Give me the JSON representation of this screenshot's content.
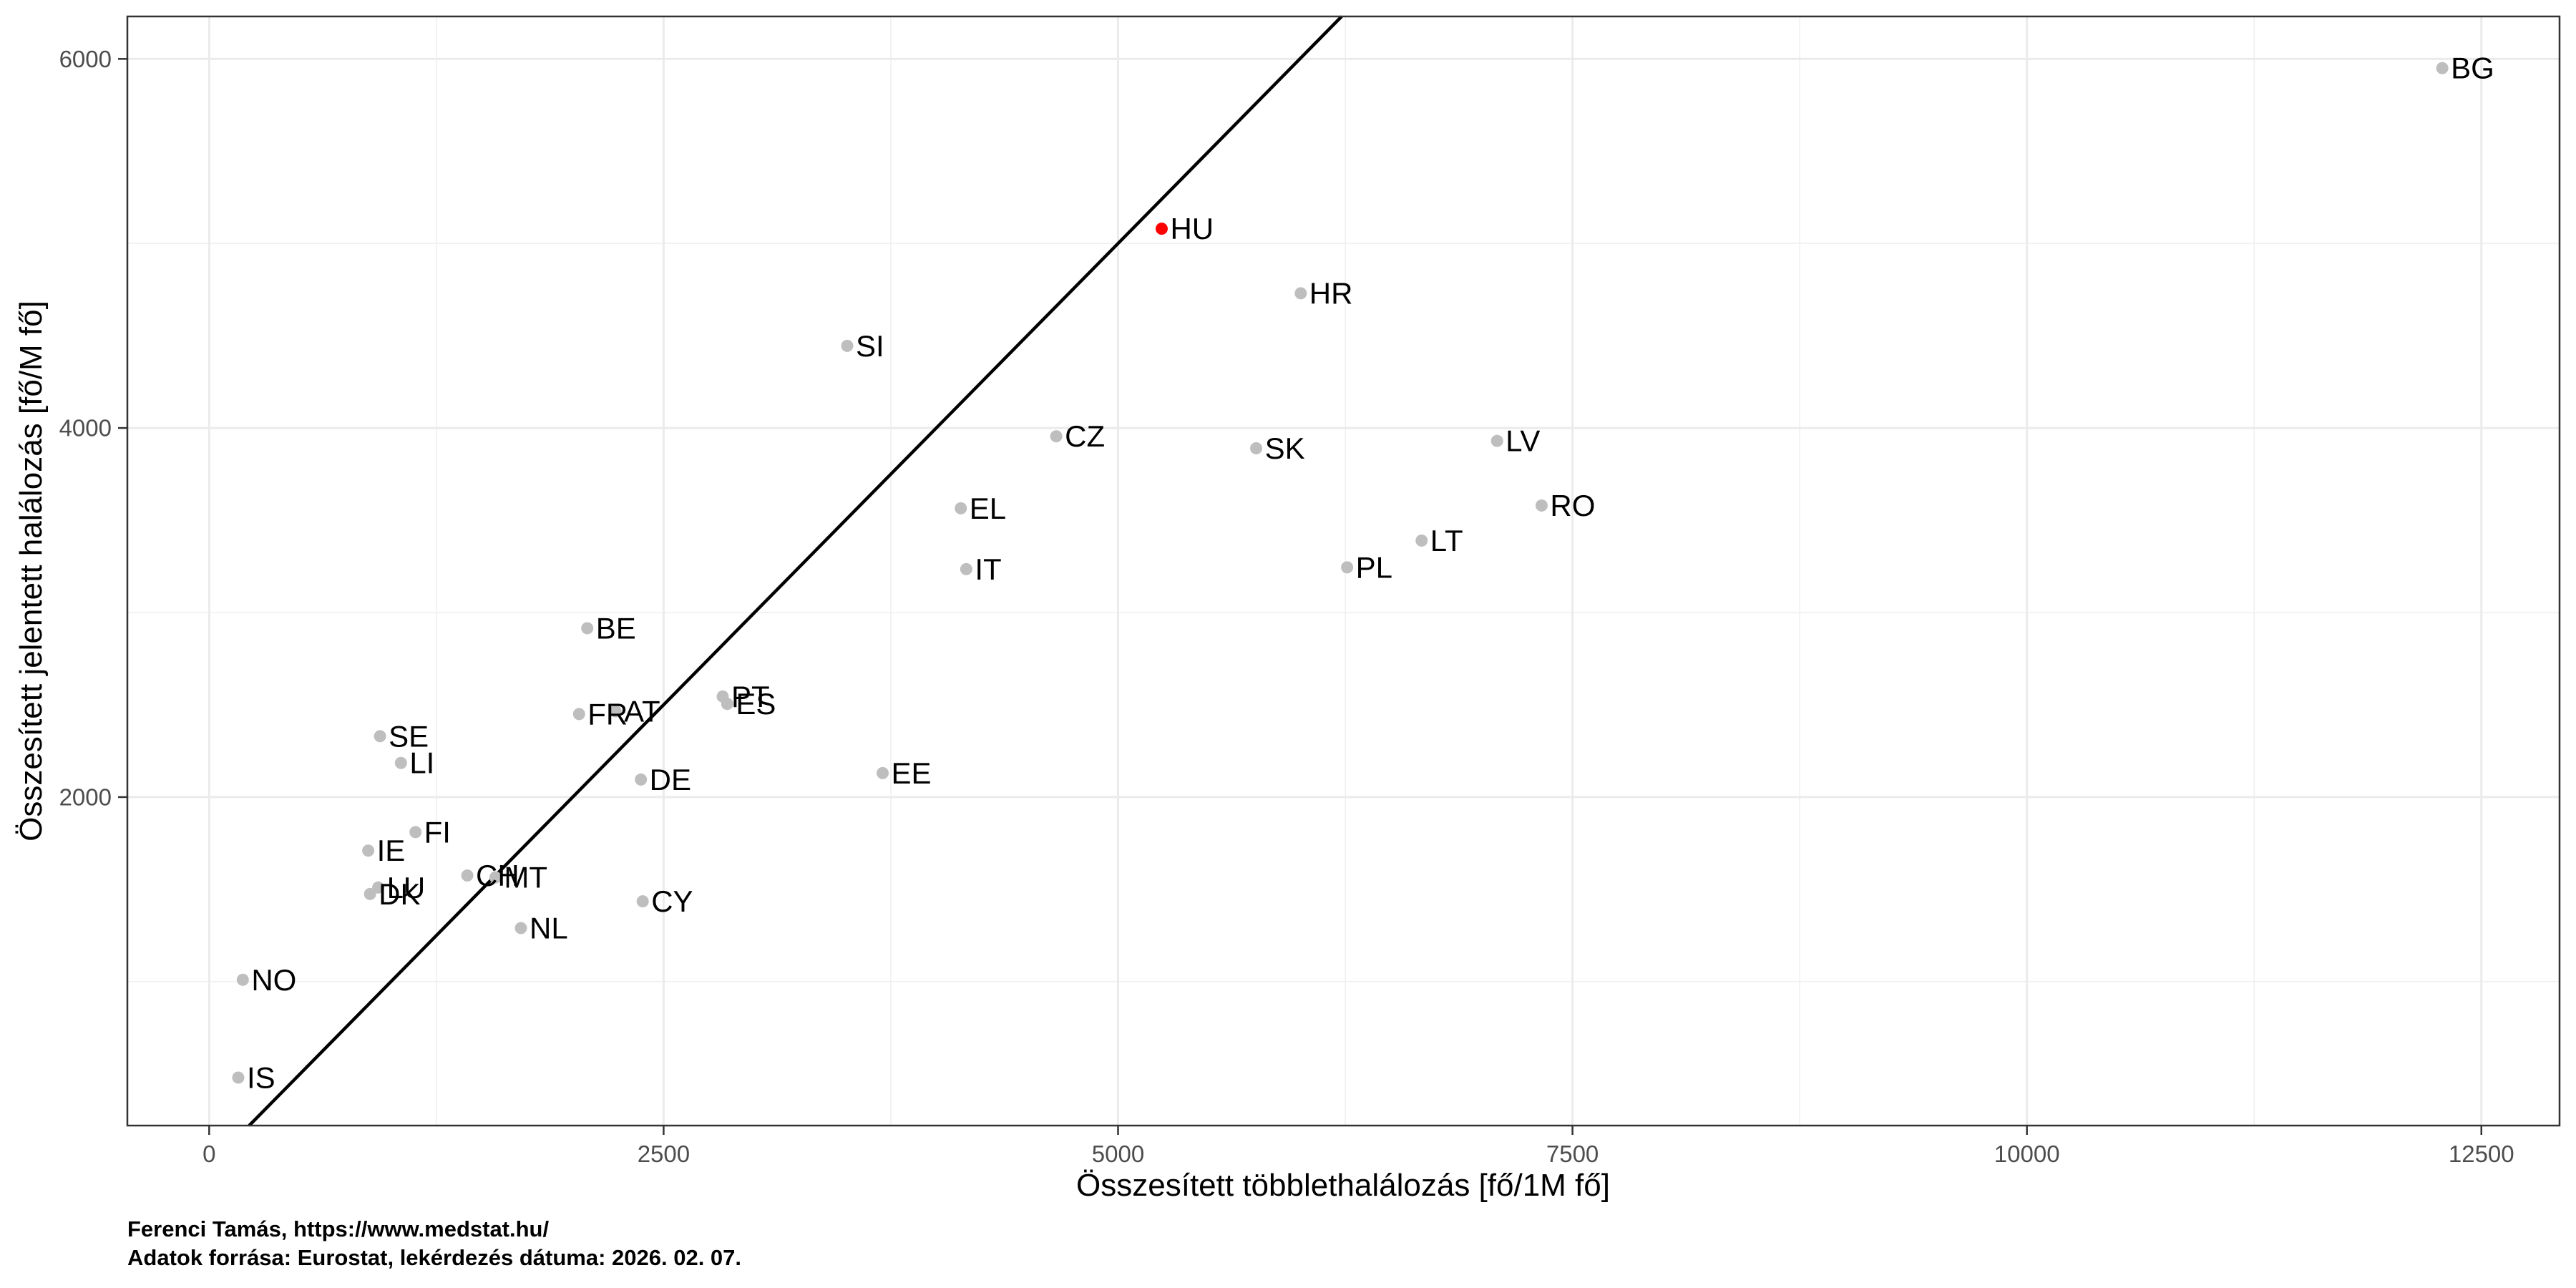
{
  "footer": {
    "line1": "Ferenci Tamás, https://www.medstat.hu/",
    "line2": "Adatok forrása: Eurostat, lekérdezés dátuma: 2026. 02. 07."
  },
  "chart_data": {
    "type": "scatter",
    "title": "",
    "xlabel": "Összesített többlethalálozás [fő/1M fő]",
    "ylabel": "Összesített jelentett halálozás [fő/M fő]",
    "xlim": [
      -450,
      12930
    ],
    "ylim": [
      220,
      6230
    ],
    "x_ticks": [
      0,
      2500,
      5000,
      7500,
      10000,
      12500
    ],
    "y_ticks": [
      2000,
      4000,
      6000
    ],
    "x_minor_gridlines": [
      1250,
      3750,
      6250,
      8750,
      11250
    ],
    "y_minor_gridlines": [
      1000,
      3000,
      5000
    ],
    "grid": true,
    "legend": "none",
    "identity_line": {
      "slope": 1,
      "intercept": 0
    },
    "highlight_label": "HU",
    "points": [
      {
        "label": "IS",
        "x": 160,
        "y": 480
      },
      {
        "label": "NO",
        "x": 185,
        "y": 1010
      },
      {
        "label": "IE",
        "x": 875,
        "y": 1710
      },
      {
        "label": "DK",
        "x": 885,
        "y": 1475
      },
      {
        "label": "LU",
        "x": 930,
        "y": 1510
      },
      {
        "label": "SE",
        "x": 940,
        "y": 2330
      },
      {
        "label": "LI",
        "x": 1055,
        "y": 2185
      },
      {
        "label": "FI",
        "x": 1135,
        "y": 1810
      },
      {
        "label": "CH",
        "x": 1420,
        "y": 1575
      },
      {
        "label": "MT",
        "x": 1575,
        "y": 1565
      },
      {
        "label": "NL",
        "x": 1715,
        "y": 1290
      },
      {
        "label": "FR",
        "x": 2035,
        "y": 2450
      },
      {
        "label": "BE",
        "x": 2080,
        "y": 2915
      },
      {
        "label": "AT",
        "x": 2235,
        "y": 2465
      },
      {
        "label": "DE",
        "x": 2375,
        "y": 2095
      },
      {
        "label": "CY",
        "x": 2385,
        "y": 1435
      },
      {
        "label": "PT",
        "x": 2825,
        "y": 2545
      },
      {
        "label": "ES",
        "x": 2850,
        "y": 2505
      },
      {
        "label": "SI",
        "x": 3510,
        "y": 4445
      },
      {
        "label": "EE",
        "x": 3705,
        "y": 2130
      },
      {
        "label": "EL",
        "x": 4135,
        "y": 3565
      },
      {
        "label": "IT",
        "x": 4165,
        "y": 3235
      },
      {
        "label": "CZ",
        "x": 4660,
        "y": 3955
      },
      {
        "label": "HU",
        "x": 5240,
        "y": 5080
      },
      {
        "label": "SK",
        "x": 5760,
        "y": 3890
      },
      {
        "label": "HR",
        "x": 6005,
        "y": 4730
      },
      {
        "label": "PL",
        "x": 6260,
        "y": 3245
      },
      {
        "label": "LT",
        "x": 6670,
        "y": 3390
      },
      {
        "label": "LV",
        "x": 7085,
        "y": 3930
      },
      {
        "label": "RO",
        "x": 7330,
        "y": 3580
      },
      {
        "label": "BG",
        "x": 12285,
        "y": 5950
      }
    ],
    "colors": {
      "point": "#bebebe",
      "highlight": "#ff0000",
      "identity_line": "#000000",
      "grid_major": "#ebebeb",
      "grid_minor": "#f0f0f0",
      "panel_border": "#333333",
      "tick_mark": "#333333",
      "tick_label": "#4d4d4d",
      "point_label": "#000000",
      "background": "#ffffff"
    }
  }
}
